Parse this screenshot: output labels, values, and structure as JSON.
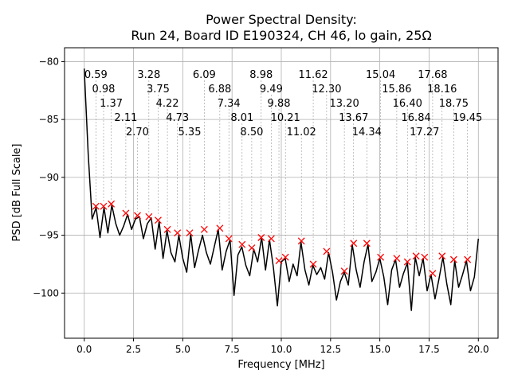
{
  "chart_data": {
    "type": "line",
    "title_line1": "Power Spectral Density:",
    "title_line2": "Run 24, Board ID E190324, CH 46, lo gain, 25Ω",
    "xlabel": "Frequency [MHz]",
    "ylabel": "PSD [dB Full Scale]",
    "xlim": [
      -1.0,
      21.0
    ],
    "ylim": [
      -103.9,
      -78.8
    ],
    "xticks": [
      0,
      2.5,
      5,
      7.5,
      10,
      12.5,
      15,
      17.5,
      20
    ],
    "xtick_labels": [
      "0.0",
      "2.5",
      "5.0",
      "7.5",
      "10.0",
      "12.5",
      "15.0",
      "17.5",
      "20.0"
    ],
    "yticks": [
      -100,
      -95,
      -90,
      -85,
      -80
    ],
    "ytick_labels": [
      "−100",
      "−95",
      "−90",
      "−85",
      "−80"
    ],
    "grid": true,
    "line_color": "#000000",
    "marker_color": "#ff0000",
    "series": {
      "name": "PSD",
      "x_start": 0,
      "x_step": 0.2,
      "y": [
        -80.6,
        -88.0,
        -93.6,
        -92.6,
        -95.2,
        -92.6,
        -94.8,
        -92.4,
        -94.0,
        -95.0,
        -94.2,
        -93.2,
        -94.5,
        -93.6,
        -93.4,
        -95.3,
        -94.0,
        -93.5,
        -96.2,
        -93.8,
        -97.0,
        -94.6,
        -96.5,
        -97.3,
        -95.0,
        -97.0,
        -98.2,
        -94.9,
        -97.8,
        -96.3,
        -95.0,
        -96.5,
        -97.5,
        -96.0,
        -94.5,
        -98.0,
        -96.4,
        -95.4,
        -100.2,
        -96.7,
        -96.0,
        -97.6,
        -98.5,
        -96.2,
        -97.3,
        -95.2,
        -98.0,
        -95.4,
        -97.8,
        -101.1,
        -97.3,
        -97.0,
        -99.0,
        -97.5,
        -98.5,
        -95.6,
        -98.0,
        -99.3,
        -97.6,
        -98.4,
        -97.8,
        -98.8,
        -96.5,
        -98.2,
        -100.6,
        -99.0,
        -98.2,
        -99.3,
        -95.8,
        -98.0,
        -99.5,
        -97.3,
        -95.8,
        -99.0,
        -98.2,
        -97.0,
        -98.6,
        -101.0,
        -98.0,
        -97.1,
        -99.5,
        -98.3,
        -97.4,
        -101.5,
        -96.9,
        -98.5,
        -97.0,
        -99.8,
        -98.4,
        -100.5,
        -98.8,
        -96.9,
        -99.2,
        -101.0,
        -97.2,
        -99.5,
        -98.4,
        -97.2,
        -99.8,
        -98.6,
        -95.3
      ]
    },
    "peaks": [
      {
        "x": 0.59,
        "y": -92.5,
        "label": "0.59"
      },
      {
        "x": 0.98,
        "y": -92.5,
        "label": "0.98"
      },
      {
        "x": 1.37,
        "y": -92.3,
        "label": "1.37"
      },
      {
        "x": 2.11,
        "y": -93.1,
        "label": "2.11"
      },
      {
        "x": 2.7,
        "y": -93.3,
        "label": "2.70"
      },
      {
        "x": 3.28,
        "y": -93.4,
        "label": "3.28"
      },
      {
        "x": 3.75,
        "y": -93.7,
        "label": "3.75"
      },
      {
        "x": 4.22,
        "y": -94.5,
        "label": "4.22"
      },
      {
        "x": 4.73,
        "y": -94.8,
        "label": "4.73"
      },
      {
        "x": 5.35,
        "y": -94.8,
        "label": "5.35"
      },
      {
        "x": 6.09,
        "y": -94.5,
        "label": "6.09"
      },
      {
        "x": 6.88,
        "y": -94.4,
        "label": "6.88"
      },
      {
        "x": 7.34,
        "y": -95.3,
        "label": "7.34"
      },
      {
        "x": 8.01,
        "y": -95.8,
        "label": "8.01"
      },
      {
        "x": 8.5,
        "y": -96.1,
        "label": "8.50"
      },
      {
        "x": 8.98,
        "y": -95.2,
        "label": "8.98"
      },
      {
        "x": 9.49,
        "y": -95.3,
        "label": "9.49"
      },
      {
        "x": 9.88,
        "y": -97.2,
        "label": "9.88"
      },
      {
        "x": 10.21,
        "y": -96.9,
        "label": "10.21"
      },
      {
        "x": 11.02,
        "y": -95.5,
        "label": "11.02"
      },
      {
        "x": 11.62,
        "y": -97.5,
        "label": "11.62"
      },
      {
        "x": 12.3,
        "y": -96.4,
        "label": "12.30"
      },
      {
        "x": 13.2,
        "y": -98.1,
        "label": "13.20"
      },
      {
        "x": 13.67,
        "y": -95.7,
        "label": "13.67"
      },
      {
        "x": 14.34,
        "y": -95.7,
        "label": "14.34"
      },
      {
        "x": 15.04,
        "y": -96.9,
        "label": "15.04"
      },
      {
        "x": 15.86,
        "y": -97.0,
        "label": "15.86"
      },
      {
        "x": 16.4,
        "y": -97.3,
        "label": "16.40"
      },
      {
        "x": 16.84,
        "y": -96.8,
        "label": "16.84"
      },
      {
        "x": 17.27,
        "y": -96.9,
        "label": "17.27"
      },
      {
        "x": 17.68,
        "y": -98.3,
        "label": "17.68"
      },
      {
        "x": 18.16,
        "y": -96.8,
        "label": "18.16"
      },
      {
        "x": 18.75,
        "y": -97.1,
        "label": "18.75"
      },
      {
        "x": 19.45,
        "y": -97.1,
        "label": "19.45"
      }
    ]
  }
}
